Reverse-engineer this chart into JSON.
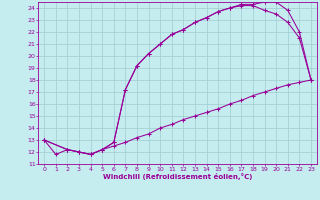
{
  "xlabel": "Windchill (Refroidissement éolien,°C)",
  "xlim": [
    -0.5,
    23.5
  ],
  "ylim": [
    11,
    24.5
  ],
  "xticks": [
    0,
    1,
    2,
    3,
    4,
    5,
    6,
    7,
    8,
    9,
    10,
    11,
    12,
    13,
    14,
    15,
    16,
    17,
    18,
    19,
    20,
    21,
    22,
    23
  ],
  "yticks": [
    11,
    12,
    13,
    14,
    15,
    16,
    17,
    18,
    19,
    20,
    21,
    22,
    23,
    24
  ],
  "bg_color": "#c5ecee",
  "grid_color": "#a0cdd0",
  "line_color": "#990099",
  "lines": [
    {
      "x": [
        0,
        1,
        2,
        3,
        4,
        5,
        6,
        7,
        8,
        9,
        10,
        11,
        12,
        13,
        14,
        15,
        16,
        17,
        18,
        19,
        20,
        21,
        22,
        23
      ],
      "y": [
        13.0,
        11.8,
        12.2,
        12.0,
        11.8,
        12.2,
        12.5,
        12.8,
        13.2,
        13.5,
        14.0,
        14.3,
        14.7,
        15.0,
        15.3,
        15.6,
        16.0,
        16.3,
        16.7,
        17.0,
        17.3,
        17.6,
        17.8,
        18.0
      ]
    },
    {
      "x": [
        0,
        2,
        3,
        4,
        5,
        6,
        7,
        8,
        9,
        10,
        11,
        12,
        13,
        14,
        15,
        16,
        17,
        18,
        19,
        20,
        21,
        22,
        23
      ],
      "y": [
        13.0,
        12.2,
        12.0,
        11.8,
        12.2,
        12.8,
        17.2,
        19.2,
        20.2,
        21.0,
        21.8,
        22.2,
        22.8,
        23.2,
        23.7,
        24.0,
        24.2,
        24.2,
        23.8,
        23.5,
        22.8,
        21.5,
        18.0
      ]
    },
    {
      "x": [
        0,
        2,
        3,
        4,
        5,
        6,
        7,
        8,
        9,
        10,
        11,
        12,
        13,
        14,
        15,
        16,
        17,
        18,
        19,
        20,
        21,
        22,
        23
      ],
      "y": [
        13.0,
        12.2,
        12.0,
        11.8,
        12.2,
        12.8,
        17.2,
        19.2,
        20.2,
        21.0,
        21.8,
        22.2,
        22.8,
        23.2,
        23.7,
        24.0,
        24.3,
        24.3,
        24.5,
        24.5,
        23.8,
        22.0,
        18.0
      ]
    }
  ]
}
